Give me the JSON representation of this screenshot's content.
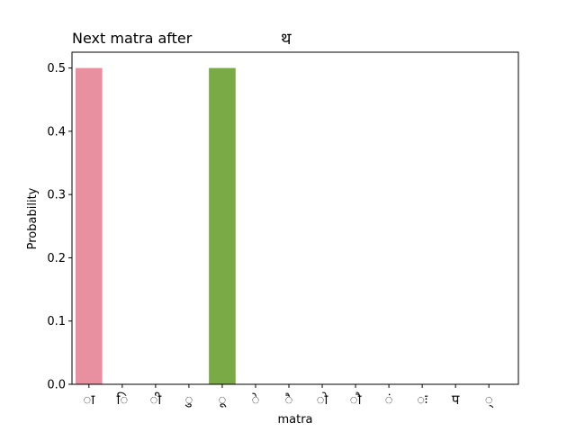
{
  "chart_data": {
    "type": "bar",
    "title_left": "Next matra after",
    "title_center": "थ",
    "xlabel": "matra",
    "ylabel": "Probability",
    "ylim": [
      0,
      0.525
    ],
    "yticks": [
      "0.0",
      "0.1",
      "0.2",
      "0.3",
      "0.4",
      "0.5"
    ],
    "categories": [
      "ा",
      "ि",
      "ी",
      "ु",
      "ू",
      "े",
      "ै",
      "ो",
      "ौ",
      "ं",
      "ः",
      "प",
      "्"
    ],
    "values": [
      0.5,
      0,
      0,
      0,
      0.5,
      0,
      0,
      0,
      0,
      0,
      0,
      0,
      0
    ],
    "colors": [
      "#e8909f",
      "#d99b6c",
      "#c2a74a",
      "#a0b14c",
      "#79aa45",
      "#4fb170",
      "#4cb39b",
      "#4fb0b8",
      "#56abd5",
      "#8a9ae8",
      "#c28be5",
      "#e37fd0",
      "#e887a8"
    ],
    "grid": false,
    "legend": "none"
  }
}
